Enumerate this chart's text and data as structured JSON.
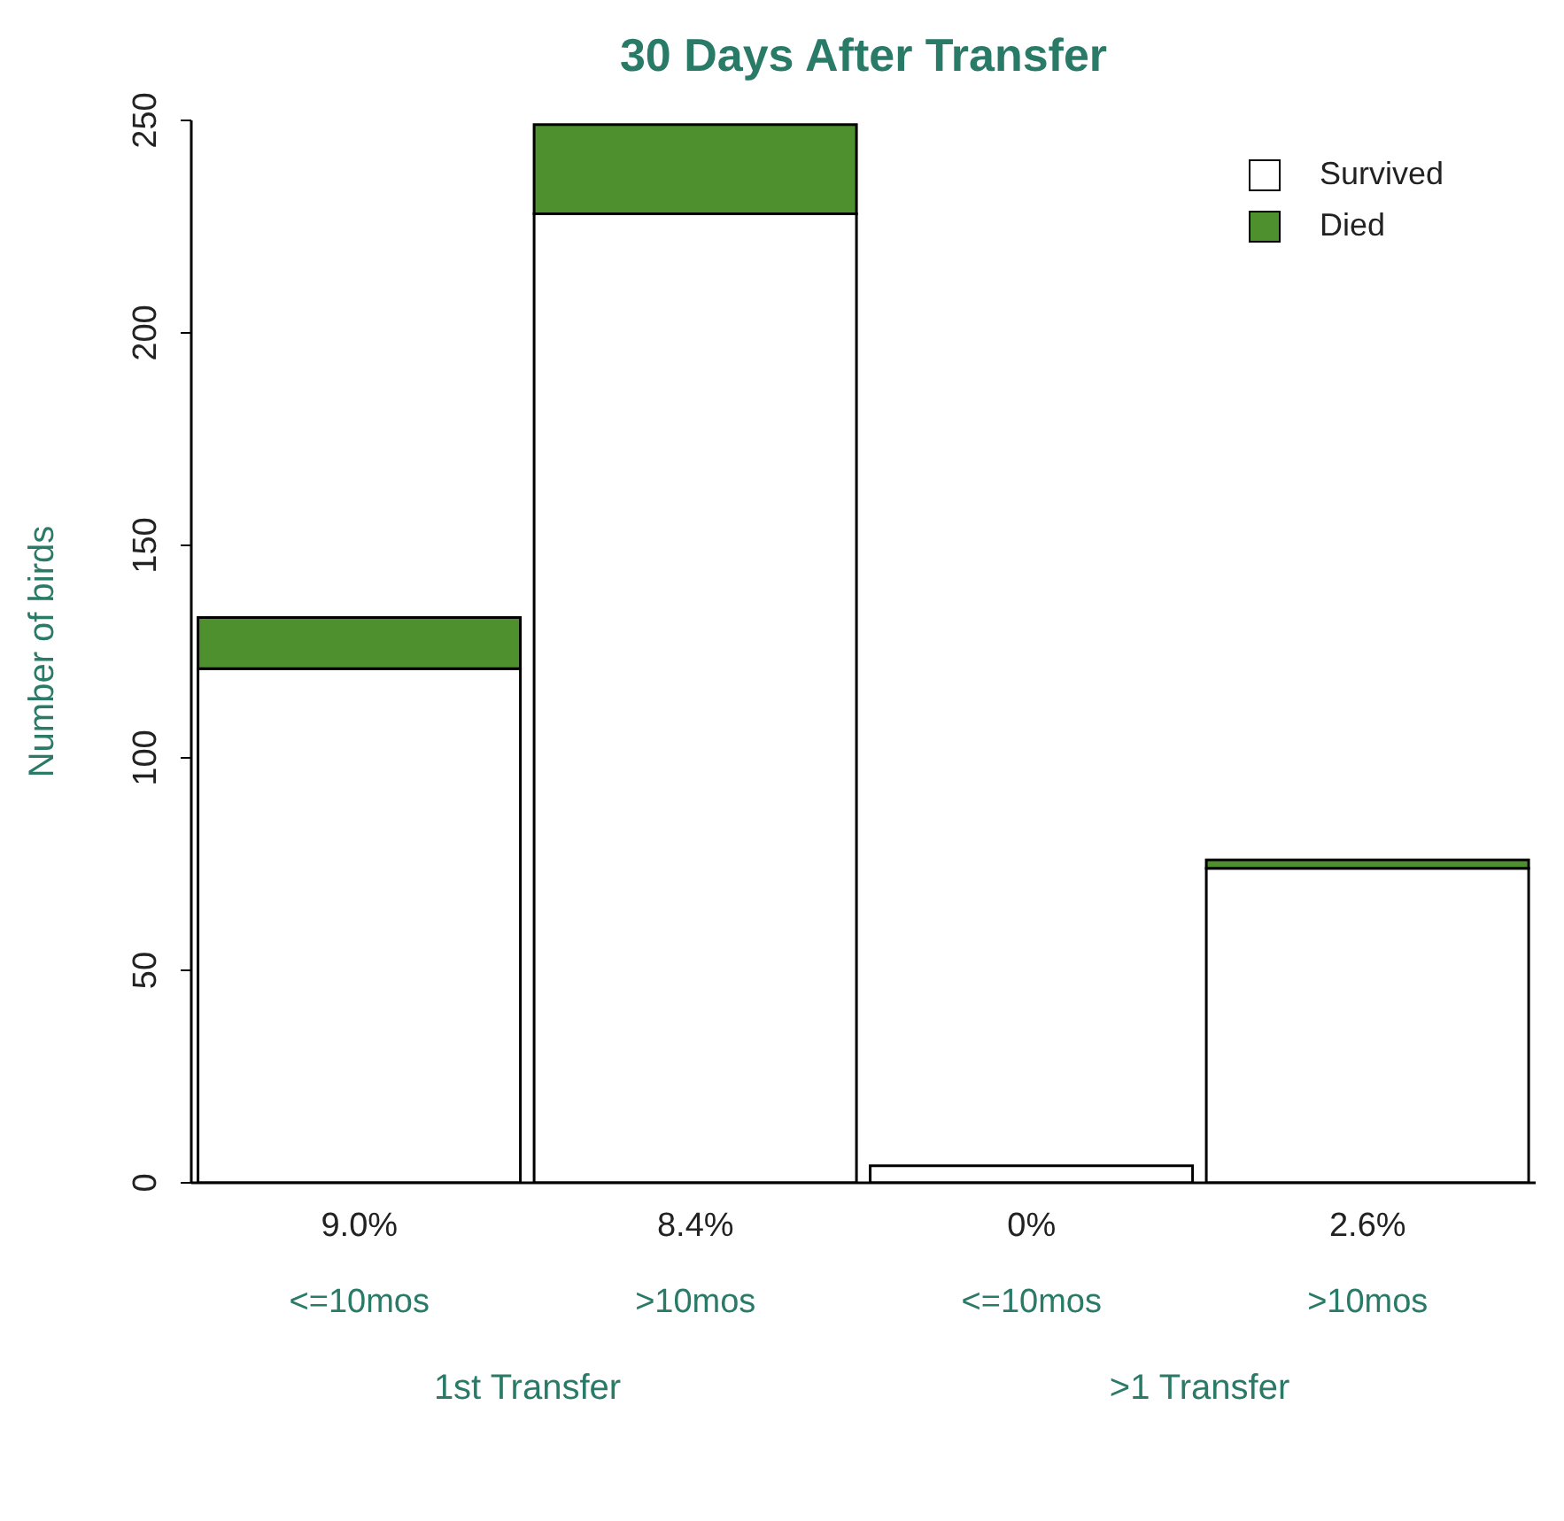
{
  "chart_data": {
    "type": "bar",
    "title": "30 Days After Transfer",
    "ylabel": "Number of birds",
    "categories": [
      "<=10mos",
      ">10mos",
      "<=10mos",
      ">10mos"
    ],
    "series": [
      {
        "name": "Survived",
        "color": "#ffffff",
        "values": [
          121,
          228,
          4,
          74
        ]
      },
      {
        "name": "Died",
        "color": "#4e8f2e",
        "values": [
          12,
          21,
          0,
          2
        ]
      }
    ],
    "stacked": true,
    "ylim": [
      0,
      250
    ],
    "yticks": [
      0,
      50,
      100,
      150,
      200,
      250
    ],
    "grid": false,
    "legend": "top right",
    "annotations": [
      "9.0%",
      "8.4%",
      "0%",
      "2.6%",
      "1st Transfer",
      ">1 Transfer"
    ]
  }
}
